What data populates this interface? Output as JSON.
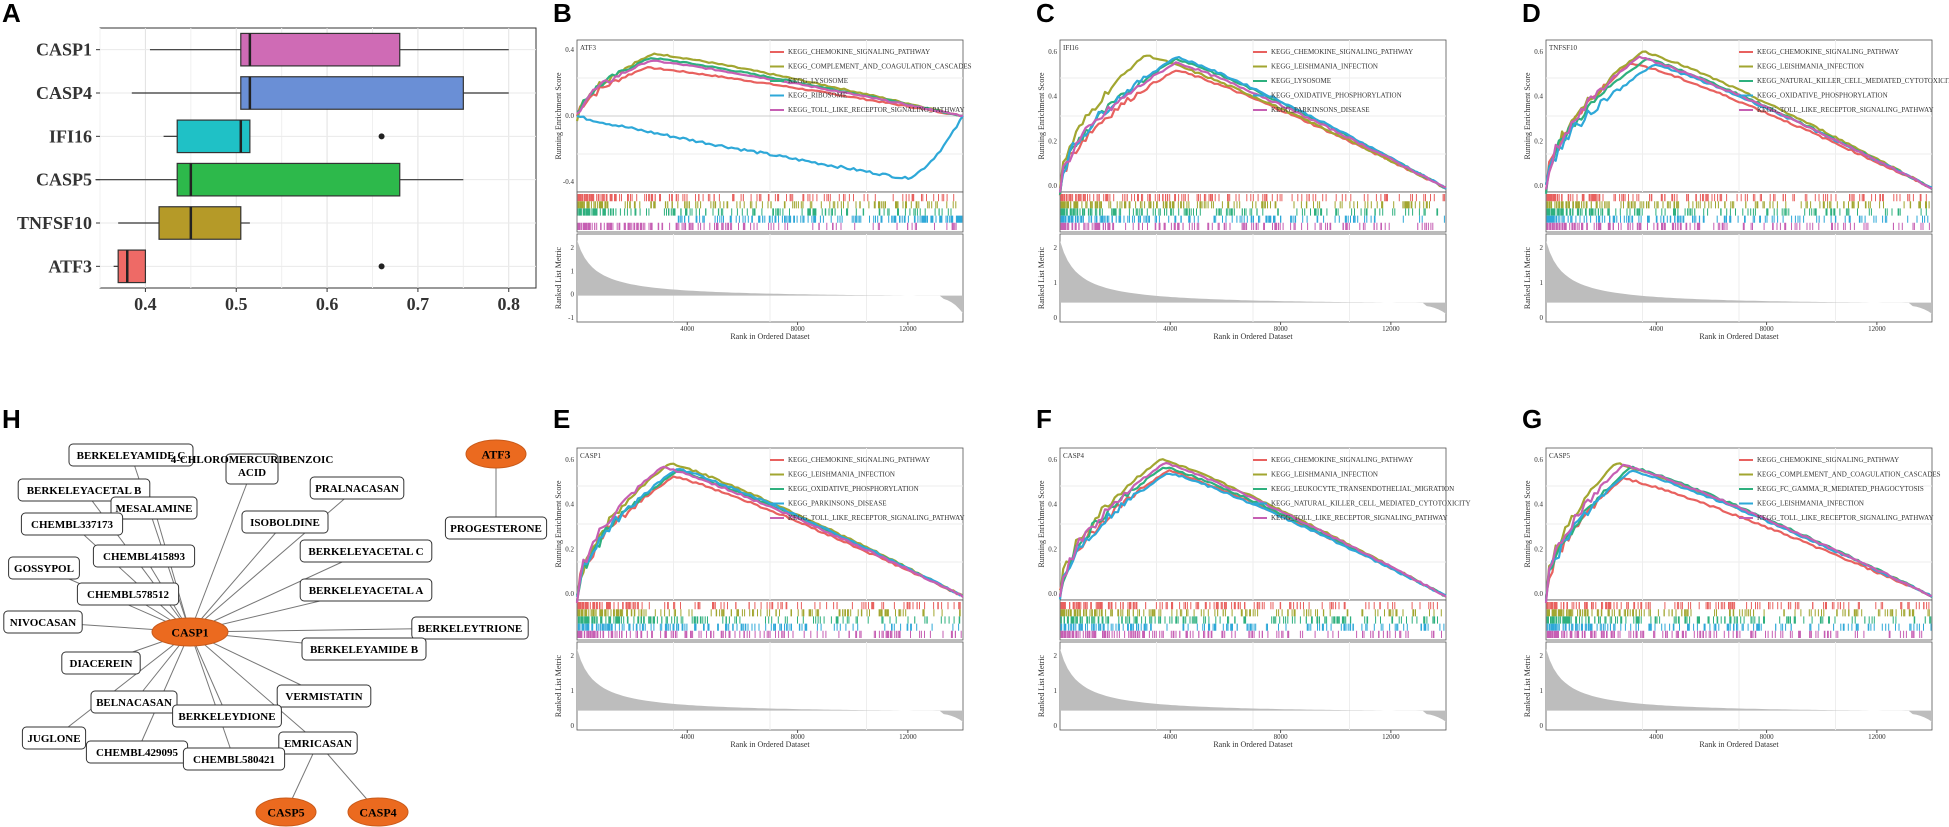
{
  "panel_labels": [
    "A",
    "B",
    "C",
    "D",
    "E",
    "F",
    "G",
    "H"
  ],
  "colors": {
    "red": "#E8615F",
    "olive": "#A2A630",
    "green": "#2EB07E",
    "blue": "#2EA8D8",
    "purple": "#C65FB3",
    "box_pink": "#CF6BB5",
    "box_blue": "#6A8FD6",
    "box_teal": "#1FC1C6",
    "box_green": "#2DB94B",
    "box_gold": "#B59A28",
    "box_red": "#EE6A66",
    "orange": "#EB6A1F",
    "gray": "#BDBDBD"
  },
  "chart_data": [
    {
      "panel": "A",
      "type": "box",
      "orientation": "horizontal",
      "categories": [
        "CASP1",
        "CASP4",
        "IFI16",
        "CASP5",
        "TNFSF10",
        "ATF3"
      ],
      "xticks": [
        "0.4",
        "0.5",
        "0.6",
        "0.7",
        "0.8"
      ],
      "xlim": [
        0.35,
        0.83
      ],
      "boxes": [
        {
          "name": "CASP1",
          "whisker_low": 0.405,
          "q1": 0.505,
          "median": 0.515,
          "q3": 0.68,
          "whisker_high": 0.8,
          "outliers": [],
          "color": "#CF6BB5"
        },
        {
          "name": "CASP4",
          "whisker_low": 0.385,
          "q1": 0.505,
          "median": 0.515,
          "q3": 0.75,
          "whisker_high": 0.8,
          "outliers": [],
          "color": "#6A8FD6"
        },
        {
          "name": "IFI16",
          "whisker_low": 0.42,
          "q1": 0.435,
          "median": 0.505,
          "q3": 0.515,
          "whisker_high": 0.515,
          "outliers": [
            0.66
          ],
          "color": "#1FC1C6"
        },
        {
          "name": "CASP5",
          "whisker_low": 0.345,
          "q1": 0.435,
          "median": 0.45,
          "q3": 0.68,
          "whisker_high": 0.75,
          "outliers": [],
          "color": "#2DB94B"
        },
        {
          "name": "TNFSF10",
          "whisker_low": 0.37,
          "q1": 0.415,
          "median": 0.45,
          "q3": 0.505,
          "whisker_high": 0.515,
          "outliers": [],
          "color": "#B59A28"
        },
        {
          "name": "ATF3",
          "whisker_low": 0.365,
          "q1": 0.37,
          "median": 0.38,
          "q3": 0.4,
          "whisker_high": 0.4,
          "outliers": [
            0.66
          ],
          "color": "#EE6A66"
        }
      ]
    },
    {
      "panel": "B",
      "type": "line",
      "title": "ATF3",
      "ylabel": "Running Enrichment Score",
      "ylabel2": "Ranked List Metric",
      "xlabel": "Rank in Ordered Dataset",
      "xticks": [
        "4000",
        "8000",
        "12000"
      ],
      "yticks": [
        "0.4",
        "0.0",
        "-0.4"
      ],
      "yticks2": [
        "2",
        "1",
        "0",
        "-1"
      ],
      "legend": [
        "KEGG_CHEMOKINE_SIGNALING_PATHWAY",
        "KEGG_COMPLEMENT_AND_COAGULATION_CASCADES",
        "KEGG_LYSOSOME",
        "KEGG_RIBOSOME",
        "KEGG_TOLL_LIKE_RECEPTOR_SIGNALING_PATHWAY"
      ],
      "series": [
        {
          "name": "KEGG_CHEMOKINE_SIGNALING_PATHWAY",
          "color": "#E8615F",
          "peak_x": 0.18,
          "peak_y": 0.35,
          "end_y": 0.0
        },
        {
          "name": "KEGG_COMPLEMENT_AND_COAGULATION_CASCADES",
          "color": "#A2A630",
          "peak_x": 0.2,
          "peak_y": 0.45,
          "end_y": 0.0
        },
        {
          "name": "KEGG_LYSOSOME",
          "color": "#2EB07E",
          "peak_x": 0.19,
          "peak_y": 0.42,
          "end_y": 0.0
        },
        {
          "name": "KEGG_RIBOSOME",
          "color": "#2EA8D8",
          "peak_x": 0.85,
          "peak_y": -0.45,
          "end_y": 0.0,
          "negative": true
        },
        {
          "name": "KEGG_TOLL_LIKE_RECEPTOR_SIGNALING_PATHWAY",
          "color": "#C65FB3",
          "peak_x": 0.19,
          "peak_y": 0.4,
          "end_y": 0.0
        }
      ]
    },
    {
      "panel": "C",
      "type": "line",
      "title": "IFI16",
      "ylabel": "Running Enrichment Score",
      "ylabel2": "Ranked List Metric",
      "xlabel": "Rank in Ordered Dataset",
      "xticks": [
        "4000",
        "8000",
        "12000"
      ],
      "yticks": [
        "0.6",
        "0.4",
        "0.2",
        "0.0"
      ],
      "yticks2": [
        "2",
        "1",
        "0"
      ],
      "legend": [
        "KEGG_CHEMOKINE_SIGNALING_PATHWAY",
        "KEGG_LEISHMANIA_INFECTION",
        "KEGG_LYSOSOME",
        "KEGG_OXIDATIVE_PHOSPHORYLATION",
        "KEGG_PARKINSONS_DISEASE"
      ],
      "series": [
        {
          "name": "KEGG_CHEMOKINE_SIGNALING_PATHWAY",
          "color": "#E8615F",
          "peak_x": 0.3,
          "peak_y": 0.62
        },
        {
          "name": "KEGG_LEISHMANIA_INFECTION",
          "color": "#A2A630",
          "peak_x": 0.22,
          "peak_y": 0.7
        },
        {
          "name": "KEGG_LYSOSOME",
          "color": "#2EB07E",
          "peak_x": 0.3,
          "peak_y": 0.68
        },
        {
          "name": "KEGG_OXIDATIVE_PHOSPHORYLATION",
          "color": "#2EA8D8",
          "peak_x": 0.3,
          "peak_y": 0.69
        },
        {
          "name": "KEGG_PARKINSONS_DISEASE",
          "color": "#C65FB3",
          "peak_x": 0.3,
          "peak_y": 0.66
        }
      ]
    },
    {
      "panel": "D",
      "type": "line",
      "title": "TNFSF10",
      "ylabel": "Running Enrichment Score",
      "ylabel2": "Ranked List Metric",
      "xlabel": "Rank in Ordered Dataset",
      "xticks": [
        "4000",
        "8000",
        "12000"
      ],
      "yticks": [
        "0.6",
        "0.4",
        "0.2",
        "0.0"
      ],
      "yticks2": [
        "2",
        "1",
        "0"
      ],
      "legend": [
        "KEGG_CHEMOKINE_SIGNALING_PATHWAY",
        "KEGG_LEISHMANIA_INFECTION",
        "KEGG_NATURAL_KILLER_CELL_MEDIATED_CYTOTOXICITY",
        "KEGG_OXIDATIVE_PHOSPHORYLATION",
        "KEGG_TOLL_LIKE_RECEPTOR_SIGNALING_PATHWAY"
      ],
      "series": [
        {
          "name": "KEGG_CHEMOKINE_SIGNALING_PATHWAY",
          "color": "#E8615F",
          "peak_x": 0.22,
          "peak_y": 0.66
        },
        {
          "name": "KEGG_LEISHMANIA_INFECTION",
          "color": "#A2A630",
          "peak_x": 0.25,
          "peak_y": 0.72
        },
        {
          "name": "KEGG_NATURAL_KILLER_CELL_MEDIATED_CYTOTOXICITY",
          "color": "#2EB07E",
          "peak_x": 0.26,
          "peak_y": 0.68
        },
        {
          "name": "KEGG_OXIDATIVE_PHOSPHORYLATION",
          "color": "#2EA8D8",
          "peak_x": 0.28,
          "peak_y": 0.65
        },
        {
          "name": "KEGG_TOLL_LIKE_RECEPTOR_SIGNALING_PATHWAY",
          "color": "#C65FB3",
          "peak_x": 0.24,
          "peak_y": 0.69
        }
      ]
    },
    {
      "panel": "E",
      "type": "line",
      "title": "CASP1",
      "ylabel": "Running Enrichment Score",
      "ylabel2": "Ranked List Metric",
      "xlabel": "Rank in Ordered Dataset",
      "xticks": [
        "4000",
        "8000",
        "12000"
      ],
      "yticks": [
        "0.6",
        "0.4",
        "0.2",
        "0.0"
      ],
      "yticks2": [
        "2",
        "1",
        "0"
      ],
      "legend": [
        "KEGG_CHEMOKINE_SIGNALING_PATHWAY",
        "KEGG_LEISHMANIA_INFECTION",
        "KEGG_OXIDATIVE_PHOSPHORYLATION",
        "KEGG_PARKINSONS_DISEASE",
        "KEGG_TOLL_LIKE_RECEPTOR_SIGNALING_PATHWAY"
      ],
      "series": [
        {
          "name": "KEGG_CHEMOKINE_SIGNALING_PATHWAY",
          "color": "#E8615F",
          "peak_x": 0.25,
          "peak_y": 0.63
        },
        {
          "name": "KEGG_LEISHMANIA_INFECTION",
          "color": "#A2A630",
          "peak_x": 0.24,
          "peak_y": 0.7
        },
        {
          "name": "KEGG_OXIDATIVE_PHOSPHORYLATION",
          "color": "#2EB07E",
          "peak_x": 0.26,
          "peak_y": 0.66
        },
        {
          "name": "KEGG_PARKINSONS_DISEASE",
          "color": "#2EA8D8",
          "peak_x": 0.26,
          "peak_y": 0.67
        },
        {
          "name": "KEGG_TOLL_LIKE_RECEPTOR_SIGNALING_PATHWAY",
          "color": "#C65FB3",
          "peak_x": 0.22,
          "peak_y": 0.68
        }
      ]
    },
    {
      "panel": "F",
      "type": "line",
      "title": "CASP4",
      "ylabel": "Running Enrichment Score",
      "ylabel2": "Ranked List Metric",
      "xlabel": "Rank in Ordered Dataset",
      "xticks": [
        "4000",
        "8000",
        "12000"
      ],
      "yticks": [
        "0.6",
        "0.4",
        "0.2",
        "0.0"
      ],
      "yticks2": [
        "2",
        "1",
        "0"
      ],
      "legend": [
        "KEGG_CHEMOKINE_SIGNALING_PATHWAY",
        "KEGG_LEISHMANIA_INFECTION",
        "KEGG_LEUKOCYTE_TRANSENDOTHELIAL_MIGRATION",
        "KEGG_NATURAL_KILLER_CELL_MEDIATED_CYTOTOXICITY",
        "KEGG_TOLL_LIKE_RECEPTOR_SIGNALING_PATHWAY"
      ],
      "series": [
        {
          "name": "KEGG_CHEMOKINE_SIGNALING_PATHWAY",
          "color": "#E8615F",
          "peak_x": 0.28,
          "peak_y": 0.66
        },
        {
          "name": "KEGG_LEISHMANIA_INFECTION",
          "color": "#A2A630",
          "peak_x": 0.26,
          "peak_y": 0.72
        },
        {
          "name": "KEGG_LEUKOCYTE_TRANSENDOTHELIAL_MIGRATION",
          "color": "#2EB07E",
          "peak_x": 0.27,
          "peak_y": 0.68
        },
        {
          "name": "KEGG_NATURAL_KILLER_CELL_MEDIATED_CYTOTOXICITY",
          "color": "#2EA8D8",
          "peak_x": 0.28,
          "peak_y": 0.65
        },
        {
          "name": "KEGG_TOLL_LIKE_RECEPTOR_SIGNALING_PATHWAY",
          "color": "#C65FB3",
          "peak_x": 0.27,
          "peak_y": 0.7
        }
      ]
    },
    {
      "panel": "G",
      "type": "line",
      "title": "CASP5",
      "ylabel": "Running Enrichment Score",
      "ylabel2": "Ranked List Metric",
      "xlabel": "Rank in Ordered Dataset",
      "xticks": [
        "4000",
        "8000",
        "12000"
      ],
      "yticks": [
        "0.6",
        "0.4",
        "0.2",
        "0.0"
      ],
      "yticks2": [
        "2",
        "1",
        "0"
      ],
      "legend": [
        "KEGG_CHEMOKINE_SIGNALING_PATHWAY",
        "KEGG_COMPLEMENT_AND_COAGULATION_CASCADES",
        "KEGG_FC_GAMMA_R_MEDIATED_PHAGOCYTOSIS",
        "KEGG_LEISHMANIA_INFECTION",
        "KEGG_TOLL_LIKE_RECEPTOR_SIGNALING_PATHWAY"
      ],
      "series": [
        {
          "name": "KEGG_CHEMOKINE_SIGNALING_PATHWAY",
          "color": "#E8615F",
          "peak_x": 0.2,
          "peak_y": 0.62
        },
        {
          "name": "KEGG_COMPLEMENT_AND_COAGULATION_CASCADES",
          "color": "#A2A630",
          "peak_x": 0.18,
          "peak_y": 0.7
        },
        {
          "name": "KEGG_FC_GAMMA_R_MEDIATED_PHAGOCYTOSIS",
          "color": "#2EB07E",
          "peak_x": 0.22,
          "peak_y": 0.68
        },
        {
          "name": "KEGG_LEISHMANIA_INFECTION",
          "color": "#2EA8D8",
          "peak_x": 0.22,
          "peak_y": 0.66
        },
        {
          "name": "KEGG_TOLL_LIKE_RECEPTOR_SIGNALING_PATHWAY",
          "color": "#C65FB3",
          "peak_x": 0.2,
          "peak_y": 0.69
        }
      ]
    }
  ],
  "network": {
    "panel": "H",
    "orange_nodes": [
      "CASP1",
      "ATF3",
      "CASP5",
      "CASP4"
    ],
    "rect_nodes": [
      "BERKELEYAMIDE C",
      "4-CHLOROMERCURIBENZOIC ACID",
      "BERKELEYACETAL B",
      "MESALAMINE",
      "PRALNACASAN",
      "CHEMBL337173",
      "ISOBOLDINE",
      "CHEMBL415893",
      "GOSSYPOL",
      "BERKELEYACETAL C",
      "CHEMBL578512",
      "BERKELEYACETAL A",
      "NIVOCASAN",
      "BERKELEYTRIONE",
      "DIACEREIN",
      "BERKELEYAMIDE B",
      "BELNACASAN",
      "VERMISTATIN",
      "BERKELEYDIONE",
      "JUGLONE",
      "EMRICASAN",
      "CHEMBL429095",
      "CHEMBL580421",
      "PROGESTERONE"
    ],
    "edges": [
      [
        "CASP1",
        "BERKELEYAMIDE C"
      ],
      [
        "CASP1",
        "4-CHLOROMERCURIBENZOIC ACID"
      ],
      [
        "CASP1",
        "BERKELEYACETAL B"
      ],
      [
        "CASP1",
        "MESALAMINE"
      ],
      [
        "CASP1",
        "PRALNACASAN"
      ],
      [
        "CASP1",
        "CHEMBL337173"
      ],
      [
        "CASP1",
        "ISOBOLDINE"
      ],
      [
        "CASP1",
        "CHEMBL415893"
      ],
      [
        "CASP1",
        "GOSSYPOL"
      ],
      [
        "CASP1",
        "BERKELEYACETAL C"
      ],
      [
        "CASP1",
        "CHEMBL578512"
      ],
      [
        "CASP1",
        "BERKELEYACETAL A"
      ],
      [
        "CASP1",
        "NIVOCASAN"
      ],
      [
        "CASP1",
        "BERKELEYTRIONE"
      ],
      [
        "CASP1",
        "DIACEREIN"
      ],
      [
        "CASP1",
        "BERKELEYAMIDE B"
      ],
      [
        "CASP1",
        "BELNACASAN"
      ],
      [
        "CASP1",
        "VERMISTATIN"
      ],
      [
        "CASP1",
        "BERKELEYDIONE"
      ],
      [
        "CASP1",
        "JUGLONE"
      ],
      [
        "CASP1",
        "EMRICASAN"
      ],
      [
        "CASP1",
        "CHEMBL429095"
      ],
      [
        "CASP1",
        "CHEMBL580421"
      ],
      [
        "EMRICASAN",
        "CASP5"
      ],
      [
        "EMRICASAN",
        "CASP4"
      ],
      [
        "ATF3",
        "PROGESTERONE"
      ]
    ]
  }
}
